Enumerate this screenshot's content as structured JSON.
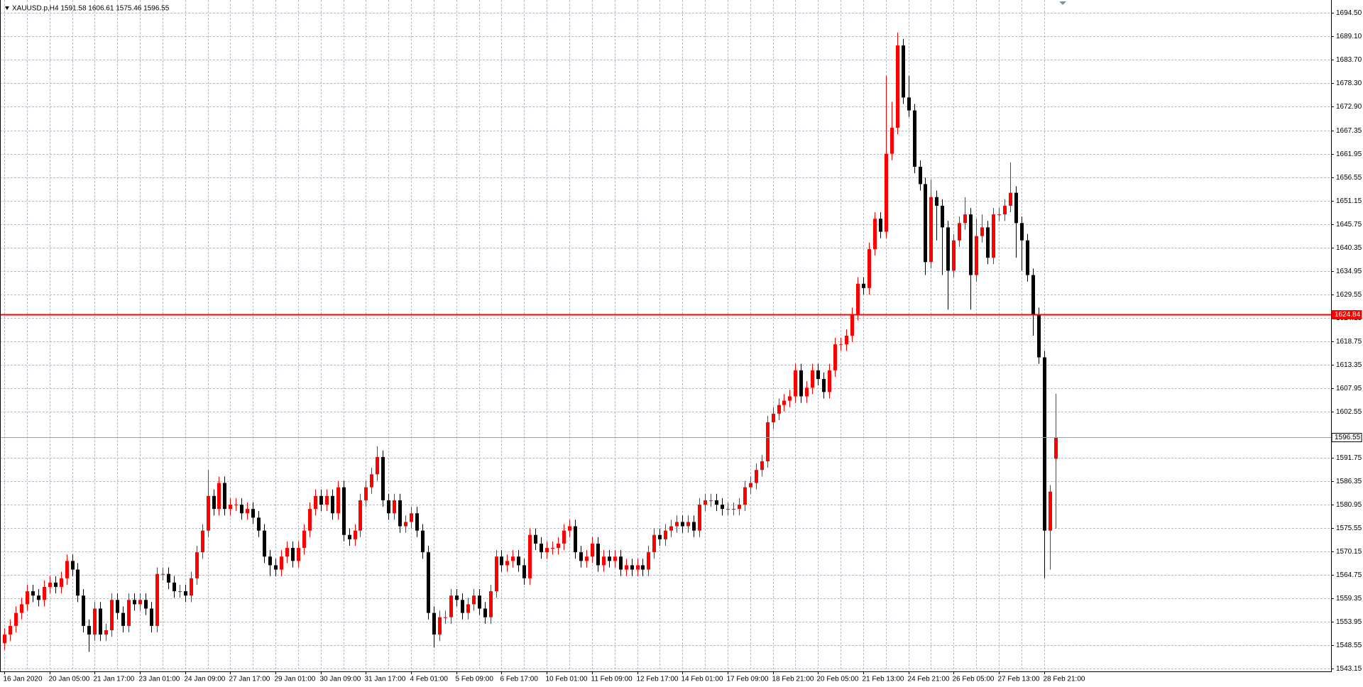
{
  "chart_data": {
    "type": "candlestick",
    "title": "XAUUSD.p,H4  1591.58 1606.61 1575.46 1596.55",
    "up_color": "#ff0000",
    "down_color": "#000000",
    "grid": true,
    "ylim": [
      1542.5,
      1697.5
    ],
    "yticks": [
      {
        "value": 1694.5,
        "label": "1694.50"
      },
      {
        "value": 1689.1,
        "label": "1689.10"
      },
      {
        "value": 1683.7,
        "label": "1683.70"
      },
      {
        "value": 1678.3,
        "label": "1678.30"
      },
      {
        "value": 1672.9,
        "label": "1672.90"
      },
      {
        "value": 1667.35,
        "label": "1667.35"
      },
      {
        "value": 1661.95,
        "label": "1661.95"
      },
      {
        "value": 1656.55,
        "label": "1656.55"
      },
      {
        "value": 1651.15,
        "label": "1651.15"
      },
      {
        "value": 1645.75,
        "label": "1645.75"
      },
      {
        "value": 1640.35,
        "label": "1640.35"
      },
      {
        "value": 1634.95,
        "label": "1634.95"
      },
      {
        "value": 1629.55,
        "label": "1629.55"
      },
      {
        "value": 1624.15,
        "label": "1624.15"
      },
      {
        "value": 1618.75,
        "label": "1618.75"
      },
      {
        "value": 1613.35,
        "label": "1613.35"
      },
      {
        "value": 1607.95,
        "label": "1607.95"
      },
      {
        "value": 1602.55,
        "label": "1602.55"
      },
      {
        "value": 1591.75,
        "label": "1591.75"
      },
      {
        "value": 1586.35,
        "label": "1586.35"
      },
      {
        "value": 1580.95,
        "label": "1580.95"
      },
      {
        "value": 1575.55,
        "label": "1575.55"
      },
      {
        "value": 1570.15,
        "label": "1570.15"
      },
      {
        "value": 1564.75,
        "label": "1564.75"
      },
      {
        "value": 1559.35,
        "label": "1559.35"
      },
      {
        "value": 1553.95,
        "label": "1553.95"
      },
      {
        "value": 1548.55,
        "label": "1548.55"
      },
      {
        "value": 1543.15,
        "label": "1543.15"
      }
    ],
    "hlines": [
      {
        "value": 1624.84,
        "label": "1624.84",
        "color": "#ff0000"
      },
      {
        "value": 1596.55,
        "label": "1596.55",
        "color": "#a0a0a0"
      }
    ],
    "categories": [
      "16 Jan 2020",
      null,
      null,
      null,
      null,
      null,
      null,
      null,
      "20 Jan 05:00",
      null,
      null,
      null,
      null,
      null,
      null,
      null,
      "21 Jan 17:00",
      null,
      null,
      null,
      null,
      null,
      null,
      null,
      "23 Jan 01:00",
      null,
      null,
      null,
      null,
      null,
      null,
      null,
      "24 Jan 09:00",
      null,
      null,
      null,
      null,
      null,
      null,
      null,
      "27 Jan 17:00",
      null,
      null,
      null,
      null,
      null,
      null,
      null,
      "29 Jan 01:00",
      null,
      null,
      null,
      null,
      null,
      null,
      null,
      "30 Jan 09:00",
      null,
      null,
      null,
      null,
      null,
      null,
      null,
      "31 Jan 17:00",
      null,
      null,
      null,
      null,
      null,
      null,
      null,
      "4 Feb 01:00",
      null,
      null,
      null,
      null,
      null,
      null,
      null,
      "5 Feb 09:00",
      null,
      null,
      null,
      null,
      null,
      null,
      null,
      "6 Feb 17:00",
      null,
      null,
      null,
      null,
      null,
      null,
      null,
      "10 Feb 01:00",
      null,
      null,
      null,
      null,
      null,
      null,
      null,
      "11 Feb 09:00",
      null,
      null,
      null,
      null,
      null,
      null,
      null,
      "12 Feb 17:00",
      null,
      null,
      null,
      null,
      null,
      null,
      null,
      "14 Feb 01:00",
      null,
      null,
      null,
      null,
      null,
      null,
      null,
      "17 Feb 09:00",
      null,
      null,
      null,
      null,
      null,
      null,
      null,
      "18 Feb 21:00",
      null,
      null,
      null,
      null,
      null,
      null,
      null,
      "20 Feb 05:00",
      null,
      null,
      null,
      null,
      null,
      null,
      null,
      "21 Feb 13:00",
      null,
      null,
      null,
      null,
      null,
      null,
      null,
      "24 Feb 21:00",
      null,
      null,
      null,
      null,
      null,
      null,
      null,
      "26 Feb 05:00",
      null,
      null,
      null,
      null,
      null,
      null,
      null,
      "27 Feb 13:00",
      null,
      null,
      null,
      null,
      null,
      null,
      null,
      "28 Feb 21:00",
      null,
      null
    ],
    "open": [
      1549,
      1551,
      1553,
      1556,
      1558,
      1561,
      1560,
      1559,
      1562,
      1563,
      1562,
      1564,
      1568,
      1566,
      1560,
      1553,
      1551,
      1557,
      1551,
      1552,
      1559,
      1556,
      1553,
      1559,
      1558,
      1559,
      1557,
      1553,
      1565,
      1565,
      1563,
      1561,
      1561,
      1560,
      1564,
      1570,
      1575,
      1583,
      1580,
      1586,
      1580,
      1581,
      1581,
      1579,
      1580,
      1578,
      1575,
      1569,
      1567,
      1566,
      1569,
      1571,
      1568,
      1571,
      1575,
      1580,
      1583,
      1581,
      1583,
      1579,
      1585,
      1574,
      1573,
      1575,
      1582,
      1585,
      1588,
      1592,
      1582,
      1579,
      1582,
      1576,
      1577,
      1579,
      1575,
      1570,
      1556,
      1551,
      1555,
      1555,
      1560,
      1559,
      1556,
      1558,
      1560,
      1557,
      1555,
      1561,
      1569,
      1567,
      1568,
      1569,
      1567,
      1564,
      1574,
      1572,
      1570,
      1571,
      1571,
      1572,
      1575,
      1576,
      1570,
      1568,
      1569,
      1572,
      1567,
      1569,
      1568,
      1569,
      1566,
      1567,
      1566,
      1567,
      1566,
      1570,
      1574,
      1573,
      1575,
      1576,
      1577,
      1576,
      1577,
      1575,
      1581,
      1582,
      1582,
      1581,
      1580,
      1580,
      1580,
      1581,
      1585,
      1586,
      1589,
      1591,
      1600,
      1602,
      1604,
      1605,
      1606,
      1612,
      1606,
      1608,
      1612,
      1610,
      1607,
      1612,
      1618,
      1618,
      1620,
      1625,
      1632,
      1631,
      1640,
      1647,
      1644,
      1662,
      1668,
      1687,
      1675,
      1672,
      1659,
      1655,
      1637,
      1652,
      1650,
      1645,
      1635,
      1642,
      1646,
      1648,
      1634,
      1643,
      1645,
      1638,
      1648,
      1648,
      1650,
      1653,
      1646,
      1642,
      1634,
      1625,
      1615,
      1575,
      1591.58
    ],
    "high": [
      1552.5,
      1554.5,
      1557.5,
      1559.5,
      1562.5,
      1562.5,
      1561.5,
      1563.5,
      1564.5,
      1564.5,
      1565.5,
      1569.5,
      1569.5,
      1567.5,
      1561.5,
      1554.5,
      1558.5,
      1558.5,
      1553.5,
      1560.5,
      1560.5,
      1557.5,
      1560.5,
      1560.5,
      1560.5,
      1560.5,
      1558.5,
      1566.5,
      1566.5,
      1566.5,
      1564.5,
      1562.5,
      1562.5,
      1565.5,
      1571.5,
      1576.5,
      1589,
      1584.5,
      1587.5,
      1587.5,
      1582.5,
      1582.5,
      1582.5,
      1581.5,
      1581.5,
      1579.5,
      1576.5,
      1570.5,
      1568.5,
      1570.5,
      1572.5,
      1572.5,
      1572.5,
      1576.5,
      1581.5,
      1584.5,
      1584.5,
      1584.5,
      1584.5,
      1586.5,
      1586.5,
      1575.5,
      1576.5,
      1583.5,
      1586.5,
      1589.5,
      1594.5,
      1593.5,
      1583.5,
      1583.5,
      1583.5,
      1578.5,
      1580.5,
      1580.5,
      1576.5,
      1571.5,
      1557.5,
      1556.5,
      1556.5,
      1561.5,
      1561.5,
      1560.5,
      1559.5,
      1561.5,
      1561.5,
      1558.5,
      1562.5,
      1570.5,
      1570.5,
      1569.5,
      1570.5,
      1570.5,
      1568.5,
      1575.5,
      1575.5,
      1573.5,
      1572.5,
      1572.5,
      1573.5,
      1576.5,
      1577.5,
      1577.5,
      1571.5,
      1570.5,
      1573.5,
      1573.5,
      1570.5,
      1570.5,
      1570.5,
      1570.5,
      1568.5,
      1568.5,
      1568.5,
      1568.5,
      1571.5,
      1575.5,
      1575.5,
      1576.5,
      1577.5,
      1578.5,
      1578.5,
      1578.5,
      1578.5,
      1582.5,
      1583.5,
      1583.5,
      1583.5,
      1582.5,
      1581.5,
      1581.5,
      1582.5,
      1586.5,
      1587.5,
      1590.5,
      1592.5,
      1601.5,
      1603.5,
      1605.5,
      1606.5,
      1607.5,
      1613.5,
      1613.5,
      1609.5,
      1613.5,
      1613.5,
      1611.5,
      1613.5,
      1619.5,
      1619.5,
      1621.5,
      1626.5,
      1633.5,
      1633.5,
      1641.5,
      1648.5,
      1648.5,
      1680,
      1674,
      1690,
      1688.5,
      1680,
      1673.5,
      1660.5,
      1656.5,
      1656,
      1653.5,
      1651.5,
      1646.5,
      1643.5,
      1647.5,
      1652,
      1649.5,
      1647,
      1648,
      1646.5,
      1649.5,
      1649.5,
      1651.5,
      1660,
      1654.5,
      1647.5,
      1643.5,
      1635.5,
      1626.5,
      1616.5,
      1585.5,
      1606.61
    ],
    "low": [
      1547.5,
      1549.5,
      1551.5,
      1554.5,
      1556.5,
      1558.5,
      1557.5,
      1557.5,
      1560.5,
      1560.5,
      1560.5,
      1562.5,
      1564.5,
      1558.5,
      1551.5,
      1547,
      1549.5,
      1549.5,
      1549.5,
      1550.5,
      1554.5,
      1551.5,
      1551.5,
      1556.5,
      1556.5,
      1555.5,
      1551.5,
      1551.5,
      1563.5,
      1561.5,
      1559.5,
      1559.5,
      1558.5,
      1558.5,
      1562.5,
      1568.5,
      1573.5,
      1578.5,
      1578.5,
      1578.5,
      1578.5,
      1579.5,
      1577.5,
      1577.5,
      1576.5,
      1573.5,
      1567.5,
      1564.5,
      1564.5,
      1564.5,
      1567.5,
      1566.5,
      1566.5,
      1569.5,
      1573.5,
      1578.5,
      1579.5,
      1579.5,
      1577.5,
      1577.5,
      1572.5,
      1571.5,
      1571.5,
      1573.5,
      1580.5,
      1583.5,
      1586.5,
      1580.5,
      1577.5,
      1577.5,
      1574.5,
      1574.5,
      1575.5,
      1573.5,
      1568.5,
      1554.5,
      1548,
      1549.5,
      1553.5,
      1553.5,
      1557.5,
      1554.5,
      1554.5,
      1556.5,
      1555.5,
      1553.5,
      1553.5,
      1559.5,
      1565.5,
      1565.5,
      1566.5,
      1565.5,
      1562.5,
      1562.5,
      1570.5,
      1568.5,
      1568.5,
      1569.5,
      1569.5,
      1570.5,
      1573.5,
      1568.5,
      1566.5,
      1566.5,
      1567.5,
      1565.5,
      1565.5,
      1566.5,
      1566.5,
      1564.5,
      1564.5,
      1564.5,
      1564.5,
      1564.5,
      1564.5,
      1568.5,
      1571.5,
      1571.5,
      1573.5,
      1574.5,
      1574.5,
      1574.5,
      1573.5,
      1573.5,
      1579.5,
      1580.5,
      1579.5,
      1578.5,
      1578.5,
      1578.5,
      1578.5,
      1579.5,
      1583.5,
      1584.5,
      1587.5,
      1589.5,
      1598.5,
      1600.5,
      1602.5,
      1603.5,
      1604.5,
      1604.5,
      1604.5,
      1606.5,
      1608.5,
      1605.5,
      1605.5,
      1610.5,
      1616.5,
      1616.5,
      1618.5,
      1623.5,
      1629.5,
      1629.5,
      1638.5,
      1642.5,
      1642.5,
      1660.5,
      1666.5,
      1673.5,
      1670.5,
      1657.5,
      1653.5,
      1634,
      1635.5,
      1642,
      1634,
      1626,
      1633.5,
      1640.5,
      1644.5,
      1626,
      1632.5,
      1641.5,
      1636.5,
      1636.5,
      1646.5,
      1646.5,
      1648.5,
      1638,
      1635,
      1632.5,
      1620,
      1613.5,
      1564,
      1566,
      1575.46
    ],
    "close": [
      1551,
      1553,
      1556,
      1558,
      1561,
      1560,
      1559,
      1562,
      1563,
      1562,
      1564,
      1568,
      1566,
      1560,
      1553,
      1551,
      1557,
      1551,
      1552,
      1559,
      1556,
      1553,
      1559,
      1558,
      1559,
      1557,
      1553,
      1565,
      1565,
      1563,
      1561,
      1561,
      1560,
      1564,
      1570,
      1575,
      1583,
      1580,
      1586,
      1580,
      1581,
      1581,
      1579,
      1580,
      1578,
      1575,
      1569,
      1567,
      1566,
      1569,
      1571,
      1568,
      1571,
      1575,
      1580,
      1583,
      1581,
      1583,
      1579,
      1585,
      1574,
      1573,
      1575,
      1582,
      1585,
      1588,
      1592,
      1582,
      1579,
      1582,
      1576,
      1577,
      1579,
      1575,
      1570,
      1556,
      1551,
      1555,
      1555,
      1560,
      1559,
      1556,
      1558,
      1560,
      1557,
      1555,
      1561,
      1569,
      1567,
      1568,
      1569,
      1567,
      1564,
      1574,
      1572,
      1570,
      1571,
      1571,
      1572,
      1575,
      1576,
      1570,
      1568,
      1569,
      1572,
      1567,
      1569,
      1568,
      1569,
      1566,
      1567,
      1566,
      1567,
      1566,
      1570,
      1574,
      1573,
      1575,
      1576,
      1577,
      1576,
      1577,
      1575,
      1581,
      1582,
      1582,
      1581,
      1580,
      1580,
      1580,
      1581,
      1585,
      1586,
      1589,
      1591,
      1600,
      1602,
      1604,
      1605,
      1606,
      1612,
      1606,
      1608,
      1612,
      1610,
      1607,
      1612,
      1618,
      1618,
      1620,
      1625,
      1632,
      1631,
      1640,
      1647,
      1644,
      1662,
      1668,
      1687,
      1675,
      1672,
      1659,
      1655,
      1637,
      1652,
      1650,
      1645,
      1635,
      1642,
      1646,
      1648,
      1634,
      1643,
      1645,
      1638,
      1648,
      1648,
      1650,
      1653,
      1646,
      1642,
      1634,
      1625,
      1615,
      1575,
      1584,
      1596.55
    ]
  }
}
